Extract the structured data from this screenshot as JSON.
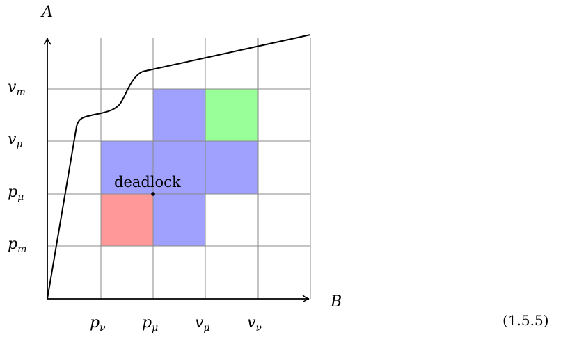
{
  "axes": {
    "x_label": "B",
    "y_label": "A",
    "x_ticks": [
      {
        "main": "p",
        "sub": "ν"
      },
      {
        "main": "p",
        "sub": "μ"
      },
      {
        "main": "v",
        "sub": "μ"
      },
      {
        "main": "v",
        "sub": "ν"
      }
    ],
    "y_ticks": [
      {
        "main": "p",
        "sub": "m"
      },
      {
        "main": "p",
        "sub": "μ"
      },
      {
        "main": "v",
        "sub": "μ"
      },
      {
        "main": "v",
        "sub": "m"
      }
    ]
  },
  "regions": {
    "forbidden_color": "#a0a0ff",
    "unsafe_color": "#ff9999",
    "unreachable_color": "#99ff99"
  },
  "deadlock_label": "deadlock",
  "equation_number": "(1.5.5)"
}
